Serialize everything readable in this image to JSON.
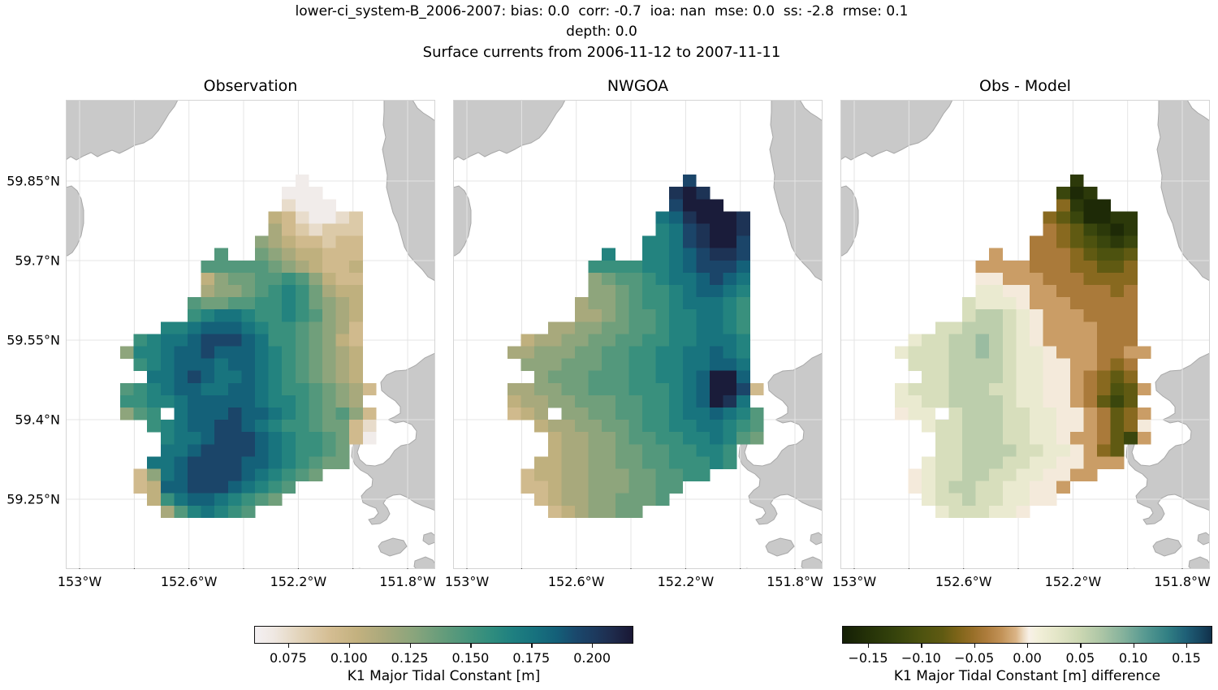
{
  "chart_data": {
    "type": "heatmap",
    "suptitle_line1": "lower-ci_system-B_2006-2007: bias: 0.0  corr: -0.7  ioa: nan  mse: 0.0  ss: -2.8  rmse: 0.1",
    "suptitle_line2": "depth: 0.0",
    "suptitle_line3": "Surface currents from 2006-11-12 to 2007-11-11",
    "panels": [
      {
        "title": "Observation",
        "colormap": "seq",
        "grid": [
          "....................",
          ".............a......",
          "............aaa.....",
          "............baaa....",
          "...........edbaabc..",
          "...........fdcbccc..",
          "..........gfeddcdd..",
          ".......i..hgfeeddd..",
          "......iiiiihgfedde..",
          "......eghhiijigedd..",
          "......fgghijkjhfee..",
          ".....ihhiijjkjhgfe..",
          ".....jkllkjjkjigfe..",
          "...kklmmmlkjjihgfd..",
          ".jkllmnnnmljjihged..",
          "gkklmmnmmmlkjihgfe..",
          ".jklmmmlmmlkjihgfe..",
          "..llmnmllmlkjihgfe..",
          "ijklmmllmmlkjjihgfd.",
          "jjkklmmmmmlkkjihgf..",
          "gij.lmmmnmmlkjihigd.",
          "..jklmmnnmlkjjihhdb.",
          "...kllmnnnmlkjjihda.",
          "...llmnnnnmlkjjih...",
          "..llmnnnnmmlkjihh...",
          ".dglmnnnnmlkjih.....",
          ".demmnnnmlkji.......",
          "..ejlmmlkjih........",
          "...fiklkji.........."
        ]
      },
      {
        "title": "NWGOA",
        "colormap": "seq",
        "grid": [
          "....................",
          ".............n......",
          "............opo.....",
          "............nppp....",
          "...........lmopppo..",
          "...........klnoppo..",
          "..........kklnoppn..",
          ".......k..kklmnoon..",
          "......jjjjkklmnnnm..",
          "......ghiijkllmnml..",
          "......gghijjklmmlk..",
          ".....fgghijjklllkj..",
          ".....ffghiijkkllkj..",
          "...ffgghhiijkkllkj..",
          ".effgghhiijjkklllk..",
          "ffggghhiijjkkllmlk..",
          ".ggghhhiijjkkllmml..",
          "..ghhhiiijjkklmppm..",
          "ffgghhiiijjjklmppnd.",
          "effgghhhiijjklmpol..",
          "def.gghhiijjkllmlki.",
          "..effgghhijjkkllkji.",
          "...effgghiijjkklkih.",
          "...effgghhiijjkkj...",
          "..eeffgghhiijjjkj...",
          ".deeffggghhiijj.....",
          ".ddeffggghhii.......",
          "..deffgghhhi........",
          "...defgghh.........."
        ]
      },
      {
        "title": "Obs - Model",
        "colormap": "div",
        "grid": [
          "....................",
          ".............b......",
          "............cab.....",
          "............fbaa....",
          "...........fecaabb..",
          "...........gfecbab..",
          "..........ggfedcbc..",
          ".......h..gggfedde..",
          "......hhhhgggffeef..",
          "......iihhhgggffff..",
          "......jjiihhggggfg..",
          ".....kjjjihhhggggg..",
          ".....kllkjihhhgggg..",
          "...kklllkjihhhhggg..",
          ".jkkllmlkjihhhhggg..",
          "jkkkllmlkjjihhhgghh.",
          ".kkkllllkjjiihhgfg..",
          "..kkllllkjjiihgfef..",
          "jkkklllkkjjiihgfdeh.",
          "jjkkllllkjjiihgece..",
          "ijj.klllkkjjiihgefh.",
          "..jkklllkkjjiihgefi.",
          "...kklllkkjjihhgech.",
          "...kkllllkkjjihfe...",
          "..jkklllkkjjiihhh...",
          ".ijkkllkkjjiihh.....",
          ".ijkllkkjjiih.......",
          "..jkklkkjjii........",
          "...jkkkjji.........."
        ]
      }
    ],
    "value_encoding": {
      "no_data": ".",
      "seq": {
        "chars": "abcdefghijklmnop",
        "min_value": 0.065,
        "step": 0.01,
        "units": "m"
      },
      "div": {
        "chars": "abcdefghijklmnopq",
        "min_value": -0.16,
        "step": 0.02,
        "units": "m"
      }
    },
    "x_axis": {
      "ticks": [
        "153°W",
        "152.6°W",
        "152.2°W",
        "151.8°W"
      ]
    },
    "y_axis": {
      "ticks": [
        "59.85°N",
        "59.7°N",
        "59.55°N",
        "59.4°N",
        "59.25°N"
      ]
    },
    "colormaps": {
      "seq": {
        "vmin": 0.061,
        "vmax": 0.217,
        "stops": [
          [
            0.0,
            "#f4f0f2"
          ],
          [
            0.05,
            "#efe8e2"
          ],
          [
            0.12,
            "#e2d3b9"
          ],
          [
            0.2,
            "#d4bd92"
          ],
          [
            0.27,
            "#c3b17f"
          ],
          [
            0.34,
            "#aaa97c"
          ],
          [
            0.42,
            "#8aa57c"
          ],
          [
            0.5,
            "#649c7b"
          ],
          [
            0.57,
            "#45947c"
          ],
          [
            0.63,
            "#2e8c7e"
          ],
          [
            0.68,
            "#1f8080"
          ],
          [
            0.74,
            "#17727e"
          ],
          [
            0.8,
            "#145f78"
          ],
          [
            0.85,
            "#1a486c"
          ],
          [
            0.9,
            "#1d3a5e"
          ],
          [
            0.95,
            "#1e2a4b"
          ],
          [
            1.0,
            "#191734"
          ]
        ]
      },
      "div": {
        "vmin": -0.1745,
        "vmax": 0.1745,
        "stops": [
          [
            0.0,
            "#141f06"
          ],
          [
            0.07,
            "#253208"
          ],
          [
            0.14,
            "#35430c"
          ],
          [
            0.21,
            "#4c520f"
          ],
          [
            0.27,
            "#5f5a12"
          ],
          [
            0.31,
            "#7c6418"
          ],
          [
            0.35,
            "#966e27"
          ],
          [
            0.39,
            "#ad7c3c"
          ],
          [
            0.43,
            "#c29257"
          ],
          [
            0.47,
            "#dab486"
          ],
          [
            0.49,
            "#eddbc2"
          ],
          [
            0.505,
            "#f8f1e8"
          ],
          [
            0.53,
            "#f2efd9"
          ],
          [
            0.58,
            "#e4e6c8"
          ],
          [
            0.64,
            "#cdd8b3"
          ],
          [
            0.7,
            "#adc6a6"
          ],
          [
            0.76,
            "#85b29c"
          ],
          [
            0.82,
            "#579991"
          ],
          [
            0.88,
            "#328084"
          ],
          [
            0.93,
            "#1f6077"
          ],
          [
            0.97,
            "#174660"
          ],
          [
            1.0,
            "#11304a"
          ]
        ]
      }
    },
    "colorbars": [
      {
        "colormap": "seq",
        "label": "K1 Major Tidal Constant [m]",
        "tick_labels": [
          "0.075",
          "0.100",
          "0.125",
          "0.150",
          "0.175",
          "0.200"
        ],
        "tick_values": [
          0.075,
          0.1,
          0.125,
          0.15,
          0.175,
          0.2
        ]
      },
      {
        "colormap": "div",
        "label": "K1 Major Tidal Constant [m] difference",
        "tick_labels": [
          "−0.15",
          "−0.10",
          "−0.05",
          "0.00",
          "0.05",
          "0.10",
          "0.15"
        ],
        "tick_values": [
          -0.15,
          -0.1,
          -0.05,
          0.0,
          0.05,
          0.1,
          0.15
        ]
      }
    ]
  }
}
